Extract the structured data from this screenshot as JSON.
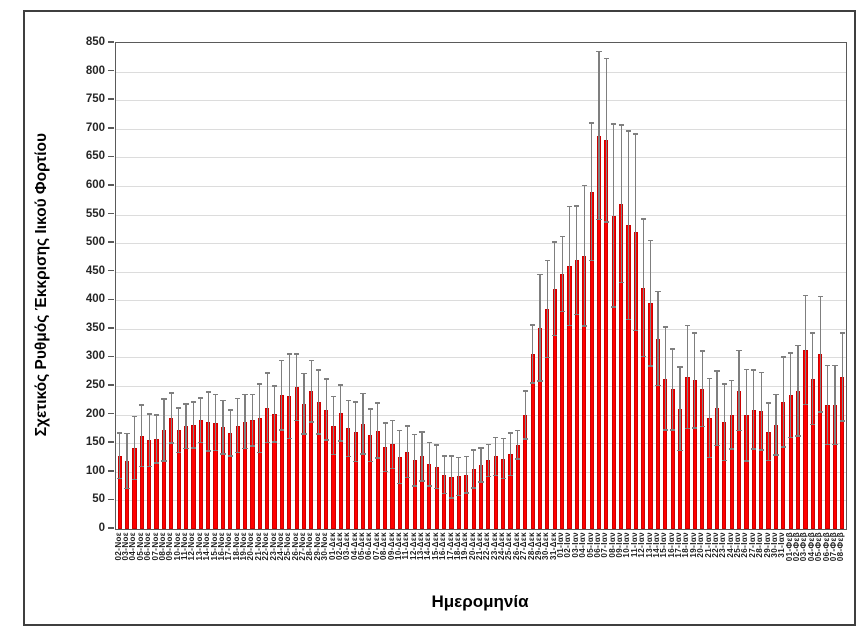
{
  "figure": {
    "x_axis_title": "Ημερομηνία",
    "y_axis_title": "Σχετικός Ρυθμός Έκκρισης Ιικού Φορτίου"
  },
  "chart_data": {
    "type": "bar",
    "title": "",
    "xlabel": "Ημερομηνία",
    "ylabel": "Σχετικός Ρυθμός Έκκρισης Ιικού Φορτίου",
    "ylim": [
      0,
      850
    ],
    "ytick_step": 50,
    "grid": true,
    "legend_position": "none",
    "bar_color": "#ff0000",
    "error_bar_color": "#7f7f7f",
    "gridline_color": "#dcdcdc",
    "error_bars": "symmetric",
    "categories": [
      "02-Νοε",
      "03-Νοε",
      "04-Νοε",
      "05-Νοε",
      "06-Νοε",
      "07-Νοε",
      "08-Νοε",
      "09-Νοε",
      "10-Νοε",
      "11-Νοε",
      "12-Νοε",
      "13-Νοε",
      "14-Νοε",
      "15-Νοε",
      "16-Νοε",
      "17-Νοε",
      "18-Νοε",
      "19-Νοε",
      "20-Νοε",
      "21-Νοε",
      "22-Νοε",
      "23-Νοε",
      "24-Νοε",
      "25-Νοε",
      "26-Νοε",
      "27-Νοε",
      "28-Νοε",
      "29-Νοε",
      "30-Νοε",
      "01-Δεκ",
      "02-Δεκ",
      "03-Δεκ",
      "04-Δεκ",
      "05-Δεκ",
      "06-Δεκ",
      "07-Δεκ",
      "08-Δεκ",
      "09-Δεκ",
      "10-Δεκ",
      "11-Δεκ",
      "12-Δεκ",
      "13-Δεκ",
      "14-Δεκ",
      "15-Δεκ",
      "16-Δεκ",
      "17-Δεκ",
      "18-Δεκ",
      "19-Δεκ",
      "20-Δεκ",
      "21-Δεκ",
      "22-Δεκ",
      "23-Δεκ",
      "24-Δεκ",
      "25-Δεκ",
      "26-Δεκ",
      "27-Δεκ",
      "28-Δεκ",
      "29-Δεκ",
      "30-Δεκ",
      "31-Δεκ",
      "01-Ιαν",
      "02-Ιαν",
      "03-Ιαν",
      "04-Ιαν",
      "05-Ιαν",
      "06-Ιαν",
      "07-Ιαν",
      "08-Ιαν",
      "09-Ιαν",
      "10-Ιαν",
      "11-Ιαν",
      "12-Ιαν",
      "13-Ιαν",
      "14-Ιαν",
      "15-Ιαν",
      "16-Ιαν",
      "17-Ιαν",
      "18-Ιαν",
      "19-Ιαν",
      "20-Ιαν",
      "21-Ιαν",
      "22-Ιαν",
      "23-Ιαν",
      "24-Ιαν",
      "25-Ιαν",
      "26-Ιαν",
      "27-Ιαν",
      "28-Ιαν",
      "29-Ιαν",
      "30-Ιαν",
      "31-Ιαν",
      "01-Φεβ",
      "02-Φεβ",
      "03-Φεβ",
      "04-Φεβ",
      "05-Φεβ",
      "06-Φεβ",
      "07-Φεβ",
      "08-Φεβ"
    ],
    "values": [
      128,
      119,
      142,
      163,
      155,
      157,
      173,
      194,
      173,
      180,
      182,
      190,
      188,
      186,
      178,
      168,
      181,
      188,
      190,
      194,
      212,
      201,
      234,
      232,
      248,
      219,
      241,
      222,
      209,
      181,
      203,
      176,
      170,
      184,
      164,
      172,
      143,
      148,
      126,
      135,
      120,
      127,
      113,
      109,
      95,
      91,
      92,
      95,
      105,
      112,
      120,
      127,
      123,
      131,
      147,
      199,
      306,
      352,
      385,
      420,
      446,
      460,
      470,
      478,
      590,
      688,
      680,
      548,
      569,
      531,
      519,
      422,
      395,
      333,
      263,
      244,
      210,
      266,
      260,
      245,
      194,
      211,
      187,
      200,
      242,
      199,
      209,
      206,
      170,
      182,
      222,
      234,
      242,
      313,
      263,
      306,
      217,
      217,
      266
    ],
    "errors": [
      40,
      48,
      55,
      54,
      46,
      42,
      54,
      44,
      39,
      39,
      40,
      39,
      52,
      49,
      47,
      40,
      47,
      47,
      45,
      60,
      61,
      49,
      61,
      74,
      58,
      53,
      54,
      56,
      53,
      51,
      49,
      49,
      52,
      53,
      46,
      48,
      42,
      42,
      46,
      45,
      45,
      43,
      38,
      38,
      33,
      37,
      33,
      32,
      33,
      30,
      28,
      33,
      35,
      37,
      25,
      42,
      51,
      93,
      85,
      82,
      66,
      104,
      95,
      123,
      120,
      147,
      143,
      160,
      138,
      165,
      172,
      120,
      110,
      82,
      90,
      71,
      73,
      90,
      83,
      66,
      69,
      65,
      67,
      60,
      70,
      80,
      69,
      68,
      50,
      53,
      79,
      74,
      79,
      95,
      80,
      101,
      69,
      69,
      77
    ]
  }
}
